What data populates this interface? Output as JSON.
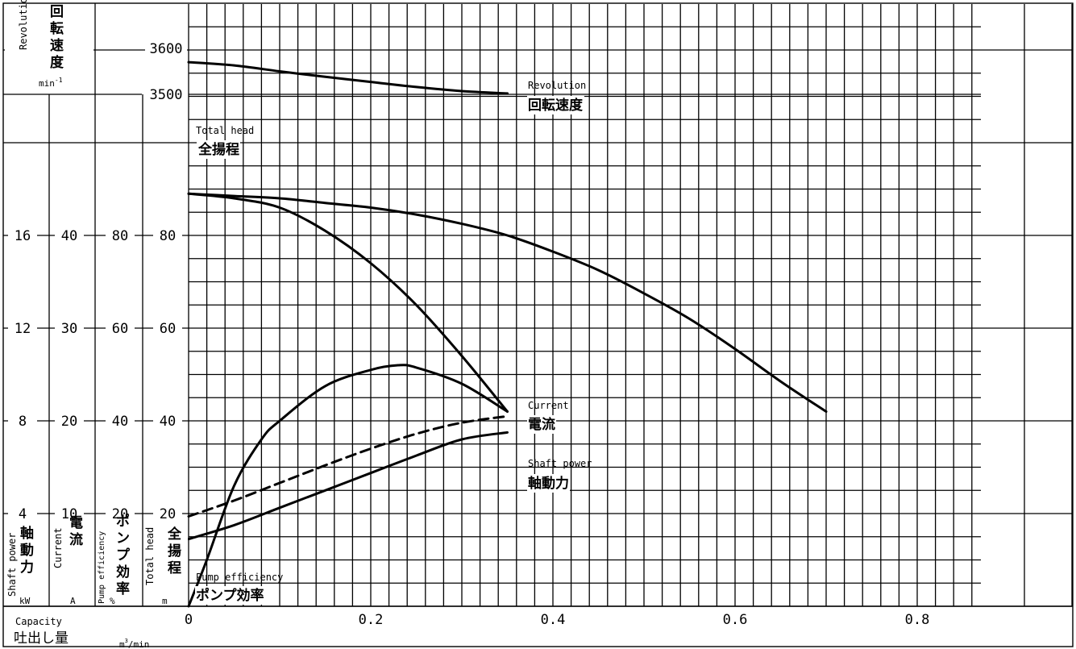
{
  "chart_data": {
    "type": "line",
    "x": {
      "name": "Capacity",
      "name_jp": "吐出し量",
      "unit": "m³/min",
      "ticks": [
        "0",
        "0.2",
        "0.4",
        "0.6",
        "0.8"
      ],
      "range": [
        0,
        0.95
      ]
    },
    "axes": {
      "revolution": {
        "name": "Revolution",
        "name_jp": "回転速度",
        "unit": "min-1",
        "ticks": [
          "3600",
          "3500"
        ]
      },
      "head": {
        "name": "Total head",
        "name_jp": "全揚程",
        "unit": "m",
        "ticks": [
          "20",
          "40",
          "60",
          "80"
        ]
      },
      "efficiency": {
        "name": "Pump efficiency",
        "name_jp": "ポンプ効率",
        "unit": "%",
        "ticks": [
          "20",
          "40",
          "60",
          "80"
        ]
      },
      "current": {
        "name": "Current",
        "name_jp": "電流",
        "unit": "A",
        "ticks": [
          "10",
          "20",
          "30",
          "40"
        ]
      },
      "power": {
        "name": "Shaft power",
        "name_jp": "軸動力",
        "unit": "kW",
        "ticks": [
          "4",
          "8",
          "12",
          "16"
        ]
      }
    },
    "series": [
      {
        "name": "Revolution",
        "name_jp": "回転速度",
        "axis": "revolution",
        "style": "solid",
        "points": [
          [
            0,
            3570
          ],
          [
            0.05,
            3563
          ],
          [
            0.1,
            3550
          ],
          [
            0.15,
            3538
          ],
          [
            0.2,
            3527
          ],
          [
            0.25,
            3516
          ],
          [
            0.3,
            3507
          ],
          [
            0.35,
            3502
          ]
        ]
      },
      {
        "name": "Total head",
        "name_jp": "全揚程",
        "axis": "head",
        "style": "solid",
        "points": [
          [
            0,
            89
          ],
          [
            0.05,
            88.5
          ],
          [
            0.1,
            88
          ],
          [
            0.15,
            87
          ],
          [
            0.2,
            86
          ],
          [
            0.25,
            84.5
          ],
          [
            0.3,
            82.5
          ],
          [
            0.35,
            80
          ],
          [
            0.4,
            76.5
          ],
          [
            0.45,
            72.5
          ],
          [
            0.5,
            67.5
          ],
          [
            0.55,
            62
          ],
          [
            0.6,
            55.5
          ],
          [
            0.65,
            48.5
          ],
          [
            0.7,
            42
          ]
        ]
      },
      {
        "name": "",
        "axis": "head",
        "style": "solid",
        "points": [
          [
            0,
            89
          ],
          [
            0.05,
            88
          ],
          [
            0.1,
            86
          ],
          [
            0.15,
            81
          ],
          [
            0.2,
            74
          ],
          [
            0.25,
            65
          ],
          [
            0.3,
            54
          ],
          [
            0.35,
            42
          ]
        ]
      },
      {
        "name": "Pump efficiency",
        "name_jp": "ポンプ効率",
        "axis": "efficiency",
        "style": "solid",
        "points": [
          [
            0,
            0
          ],
          [
            0.02,
            10
          ],
          [
            0.05,
            26
          ],
          [
            0.08,
            36
          ],
          [
            0.1,
            40
          ],
          [
            0.15,
            47.5
          ],
          [
            0.2,
            51
          ],
          [
            0.23,
            52
          ],
          [
            0.25,
            51.5
          ],
          [
            0.3,
            48
          ],
          [
            0.35,
            42
          ]
        ]
      },
      {
        "name": "Current",
        "name_jp": "電流",
        "axis": "current",
        "style": "dashed",
        "points": [
          [
            0,
            9.7
          ],
          [
            0.05,
            11.4
          ],
          [
            0.1,
            13.3
          ],
          [
            0.15,
            15.2
          ],
          [
            0.2,
            17
          ],
          [
            0.25,
            18.6
          ],
          [
            0.3,
            19.8
          ],
          [
            0.35,
            20.5
          ]
        ]
      },
      {
        "name": "Shaft power",
        "name_jp": "軸動力",
        "axis": "power",
        "style": "solid",
        "points": [
          [
            0,
            2.9
          ],
          [
            0.05,
            3.5
          ],
          [
            0.1,
            4.25
          ],
          [
            0.15,
            5
          ],
          [
            0.2,
            5.75
          ],
          [
            0.25,
            6.5
          ],
          [
            0.3,
            7.2
          ],
          [
            0.35,
            7.5
          ]
        ]
      }
    ]
  },
  "labels": {
    "revolution_axis_en": "Revolution",
    "revolution_axis_jp": [
      "回",
      "転",
      "速",
      "度"
    ],
    "revolution_axis_unit": "min",
    "revolution_axis_unit_sup": "-1",
    "curve_revolution_en": "Revolution",
    "curve_revolution_jp": "回転速度",
    "curve_head_en": "Total head",
    "curve_head_jp": "全揚程",
    "curve_current_en": "Current",
    "curve_current_jp": "電流",
    "curve_power_en": "Shaft power",
    "curve_power_jp": "軸動力",
    "curve_eff_en": "Pump efficiency",
    "curve_eff_jp": "ポンプ効率",
    "axis_power_en": "Shaft power",
    "axis_power_jp": [
      "軸",
      "動",
      "力"
    ],
    "axis_power_unit": "kW",
    "axis_current_en": "Current",
    "axis_current_jp": [
      "電",
      "流"
    ],
    "axis_current_unit": "A",
    "axis_eff_en": "Pump efficiency",
    "axis_eff_jp": [
      "ポ",
      "ン",
      "プ",
      "効",
      "率"
    ],
    "axis_eff_unit": "%",
    "axis_head_en": "Total head",
    "axis_head_jp": [
      "全",
      "揚",
      "程"
    ],
    "axis_head_unit": "m",
    "capacity_en": "Capacity",
    "capacity_jp": "吐出し量",
    "capacity_unit": "m",
    "capacity_unit_sup": "3",
    "capacity_unit_tail": "/min"
  }
}
